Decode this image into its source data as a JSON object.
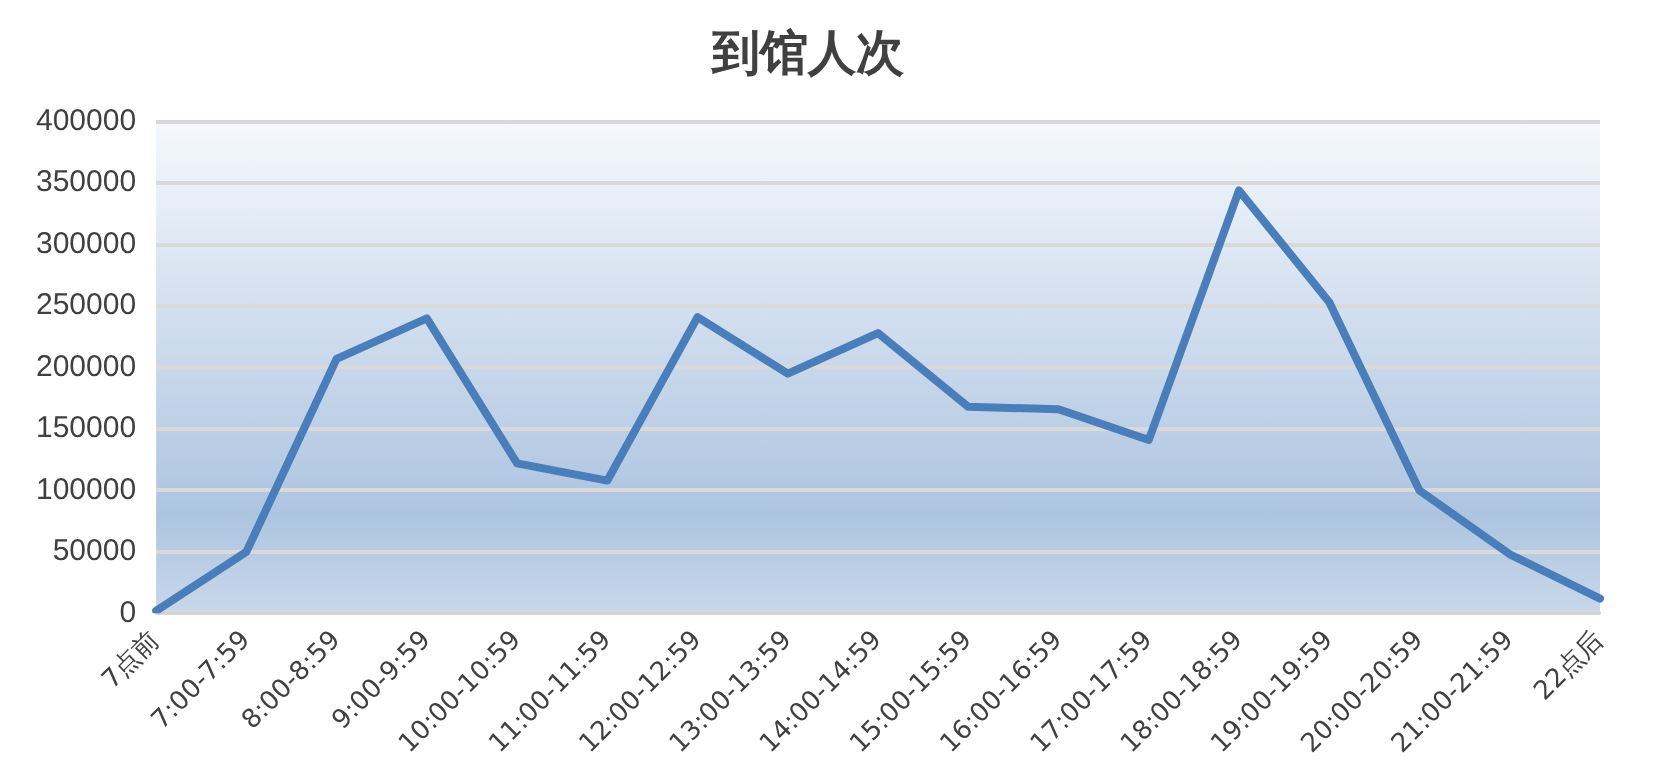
{
  "chart_data": {
    "type": "line",
    "title": "到馆人次",
    "categories": [
      "7点前",
      "7:00-7:59",
      "8:00-8:59",
      "9:00-9:59",
      "10:00-10:59",
      "11:00-11:59",
      "12:00-12:59",
      "13:00-13:59",
      "14:00-14:59",
      "15:00-15:59",
      "16:00-16:59",
      "17:00-17:59",
      "18:00-18:59",
      "19:00-19:59",
      "20:00-20:59",
      "21:00-21:59",
      "22点后"
    ],
    "series": [
      {
        "color": "#4a7ebb",
        "values": [
          2000,
          50000,
          207000,
          240000,
          122000,
          108000,
          241000,
          195000,
          228000,
          168000,
          166000,
          141000,
          344000,
          253000,
          100000,
          48000,
          12000
        ]
      }
    ],
    "ylim": [
      0,
      400000
    ],
    "yticks": [
      0,
      50000,
      100000,
      150000,
      200000,
      250000,
      300000,
      350000,
      400000
    ],
    "grid": "y",
    "legend": false,
    "marker": "none",
    "line_style": "solid"
  }
}
